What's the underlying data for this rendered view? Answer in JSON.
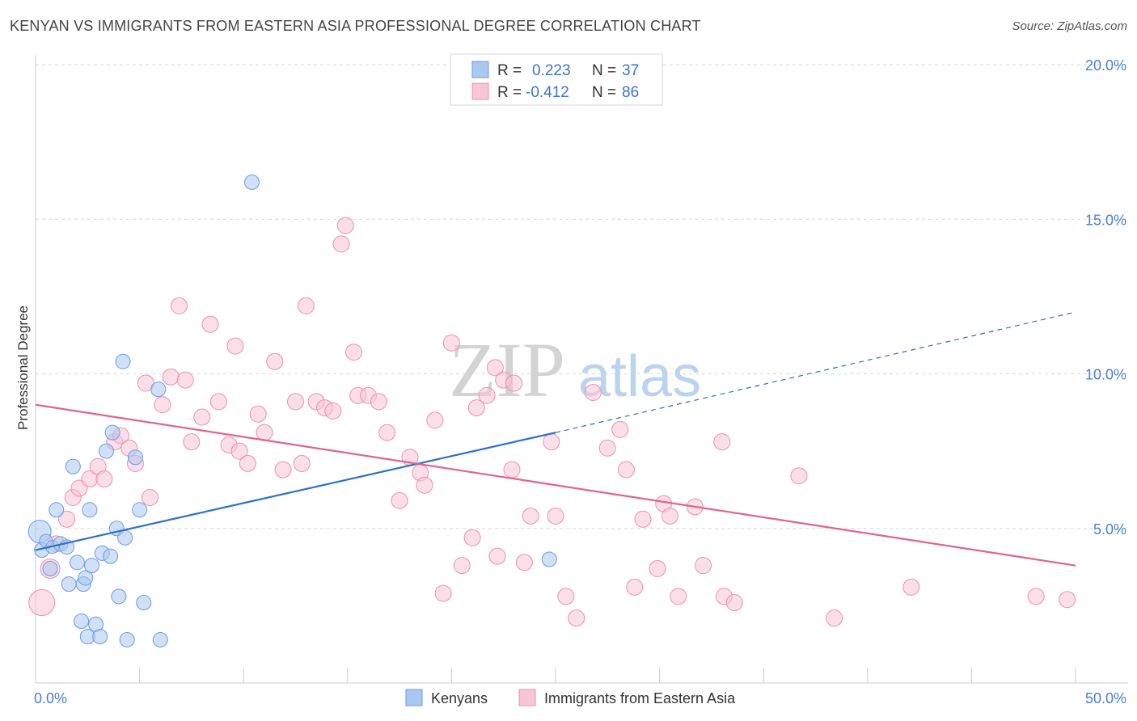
{
  "title": "KENYAN VS IMMIGRANTS FROM EASTERN ASIA PROFESSIONAL DEGREE CORRELATION CHART",
  "source": "Source: ZipAtlas.com",
  "watermark": {
    "zip": "ZIP",
    "atlas": "atlas"
  },
  "colors": {
    "blue_fill": "#a9c8f0",
    "blue_stroke": "#6a9be0",
    "blue_line": "#2b6fd0",
    "pink_fill": "#f7c5d5",
    "pink_stroke": "#ec8fb0",
    "pink_line": "#e2628f",
    "tick_text": "#4a7fd4",
    "grid": "#d9d9d9"
  },
  "legend": {
    "rows": [
      {
        "r_label": "R =",
        "r_value": "0.223",
        "n_label": "N =",
        "n_value": "37"
      },
      {
        "r_label": "R =",
        "r_value": "-0.412",
        "n_label": "N =",
        "n_value": "86"
      }
    ]
  },
  "bottom_legend": [
    "Kenyans",
    "Immigrants from Eastern Asia"
  ],
  "chart_data": {
    "type": "scatter",
    "title": "KENYAN VS IMMIGRANTS FROM EASTERN ASIA PROFESSIONAL DEGREE CORRELATION CHART",
    "xlabel": "",
    "ylabel": "Professional Degree",
    "xlim": [
      0,
      50
    ],
    "ylim": [
      0,
      20
    ],
    "x_tick_labels": [
      "0.0%",
      "50.0%"
    ],
    "y_ticks": [
      5,
      10,
      15,
      20
    ],
    "y_tick_labels": [
      "5.0%",
      "10.0%",
      "15.0%",
      "20.0%"
    ],
    "grid": true,
    "legend_position": "top-center",
    "series": [
      {
        "name": "Kenyans",
        "r": 0.223,
        "n": 37,
        "trend": {
          "x0": 0,
          "y0": 4.3,
          "x1": 25,
          "y1": 8.1,
          "dashed_to_x": 50,
          "dashed_to_y": 12.0
        },
        "points": [
          [
            0.2,
            4.9,
            14
          ],
          [
            0.3,
            4.3,
            9
          ],
          [
            0.5,
            4.6,
            8
          ],
          [
            0.7,
            3.7,
            9
          ],
          [
            0.8,
            4.4,
            8
          ],
          [
            1.0,
            5.6,
            9
          ],
          [
            1.2,
            4.5,
            9
          ],
          [
            1.5,
            4.4,
            9
          ],
          [
            1.6,
            3.2,
            9
          ],
          [
            1.8,
            7.0,
            9
          ],
          [
            2.0,
            3.9,
            9
          ],
          [
            2.2,
            2.0,
            9
          ],
          [
            2.3,
            3.2,
            9
          ],
          [
            2.4,
            3.4,
            9
          ],
          [
            2.5,
            1.5,
            9
          ],
          [
            2.6,
            5.6,
            9
          ],
          [
            2.7,
            3.8,
            9
          ],
          [
            2.9,
            1.9,
            9
          ],
          [
            3.1,
            1.5,
            9
          ],
          [
            3.2,
            4.2,
            9
          ],
          [
            3.4,
            7.5,
            9
          ],
          [
            3.6,
            4.1,
            9
          ],
          [
            3.7,
            8.1,
            9
          ],
          [
            3.9,
            5.0,
            9
          ],
          [
            4.0,
            2.8,
            9
          ],
          [
            4.2,
            10.4,
            9
          ],
          [
            4.3,
            4.7,
            9
          ],
          [
            4.4,
            1.4,
            9
          ],
          [
            4.8,
            7.3,
            9
          ],
          [
            5.0,
            5.6,
            9
          ],
          [
            5.2,
            2.6,
            9
          ],
          [
            5.9,
            9.5,
            9
          ],
          [
            6.0,
            1.4,
            9
          ],
          [
            10.4,
            16.2,
            9
          ],
          [
            24.7,
            4.0,
            9
          ]
        ]
      },
      {
        "name": "Immigrants from Eastern Asia",
        "r": -0.412,
        "n": 86,
        "trend": {
          "x0": 0,
          "y0": 9.0,
          "x1": 50,
          "y1": 3.8
        },
        "points": [
          [
            0.3,
            2.6,
            16
          ],
          [
            0.7,
            3.7,
            12
          ],
          [
            1.0,
            4.5,
            10
          ],
          [
            1.5,
            5.3,
            10
          ],
          [
            1.8,
            6.0,
            10
          ],
          [
            2.1,
            6.3,
            10
          ],
          [
            2.6,
            6.6,
            10
          ],
          [
            3.0,
            7.0,
            10
          ],
          [
            3.3,
            6.6,
            10
          ],
          [
            3.8,
            7.8,
            10
          ],
          [
            4.1,
            8.0,
            10
          ],
          [
            4.5,
            7.6,
            10
          ],
          [
            4.8,
            7.1,
            10
          ],
          [
            5.3,
            9.7,
            10
          ],
          [
            5.5,
            6.0,
            10
          ],
          [
            6.1,
            9.0,
            10
          ],
          [
            6.5,
            9.9,
            10
          ],
          [
            6.9,
            12.2,
            10
          ],
          [
            7.2,
            9.8,
            10
          ],
          [
            7.5,
            7.8,
            10
          ],
          [
            8.0,
            8.6,
            10
          ],
          [
            8.4,
            11.6,
            10
          ],
          [
            8.8,
            9.1,
            10
          ],
          [
            9.3,
            7.7,
            10
          ],
          [
            9.6,
            10.9,
            10
          ],
          [
            9.8,
            7.5,
            10
          ],
          [
            10.2,
            7.1,
            10
          ],
          [
            10.7,
            8.7,
            10
          ],
          [
            11.0,
            8.1,
            10
          ],
          [
            11.5,
            10.4,
            10
          ],
          [
            11.9,
            6.9,
            10
          ],
          [
            12.5,
            9.1,
            10
          ],
          [
            12.8,
            7.1,
            10
          ],
          [
            13.0,
            12.2,
            10
          ],
          [
            13.5,
            9.1,
            10
          ],
          [
            13.9,
            8.9,
            10
          ],
          [
            14.3,
            8.8,
            10
          ],
          [
            14.7,
            14.2,
            10
          ],
          [
            14.9,
            14.8,
            10
          ],
          [
            15.3,
            10.7,
            10
          ],
          [
            15.5,
            9.3,
            10
          ],
          [
            16.0,
            9.3,
            10
          ],
          [
            16.5,
            9.1,
            10
          ],
          [
            16.9,
            8.1,
            10
          ],
          [
            17.5,
            5.9,
            10
          ],
          [
            18.0,
            7.3,
            10
          ],
          [
            18.5,
            6.8,
            10
          ],
          [
            18.7,
            6.4,
            10
          ],
          [
            19.2,
            8.5,
            10
          ],
          [
            19.6,
            2.9,
            10
          ],
          [
            20.0,
            11.0,
            10
          ],
          [
            20.5,
            3.8,
            10
          ],
          [
            21.0,
            4.7,
            10
          ],
          [
            21.2,
            8.9,
            10
          ],
          [
            21.7,
            9.3,
            10
          ],
          [
            22.1,
            10.2,
            10
          ],
          [
            22.2,
            4.1,
            10
          ],
          [
            22.5,
            9.8,
            10
          ],
          [
            22.9,
            6.9,
            10
          ],
          [
            23.0,
            9.7,
            10
          ],
          [
            23.5,
            3.9,
            10
          ],
          [
            23.8,
            5.4,
            10
          ],
          [
            24.8,
            7.8,
            10
          ],
          [
            25.0,
            5.4,
            10
          ],
          [
            25.5,
            2.8,
            10
          ],
          [
            26.0,
            2.1,
            10
          ],
          [
            26.8,
            9.4,
            10
          ],
          [
            27.5,
            7.6,
            10
          ],
          [
            28.1,
            8.2,
            10
          ],
          [
            28.4,
            6.9,
            10
          ],
          [
            28.8,
            3.1,
            10
          ],
          [
            29.2,
            5.3,
            10
          ],
          [
            29.9,
            3.7,
            10
          ],
          [
            30.2,
            5.8,
            10
          ],
          [
            30.5,
            5.4,
            10
          ],
          [
            30.9,
            2.8,
            10
          ],
          [
            31.7,
            5.7,
            10
          ],
          [
            32.1,
            3.8,
            10
          ],
          [
            33.0,
            7.8,
            10
          ],
          [
            33.1,
            2.8,
            10
          ],
          [
            33.6,
            2.6,
            10
          ],
          [
            36.7,
            6.7,
            10
          ],
          [
            38.4,
            2.1,
            10
          ],
          [
            42.1,
            3.1,
            10
          ],
          [
            48.1,
            2.8,
            10
          ],
          [
            49.6,
            2.7,
            10
          ]
        ]
      }
    ]
  }
}
